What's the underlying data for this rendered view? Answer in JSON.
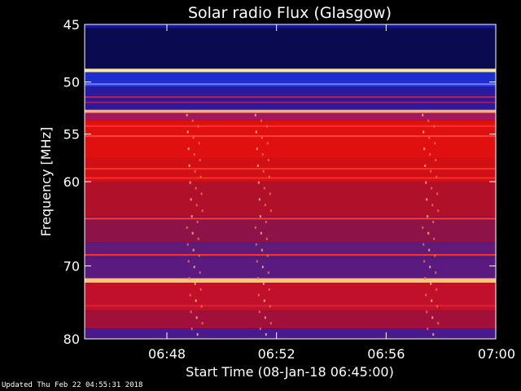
{
  "chart_data": {
    "type": "heatmap",
    "title": "Solar radio Flux (Glasgow)",
    "xlabel": "Start Time (08-Jan-18 06:45:00)",
    "ylabel": "Frequency [MHz]",
    "x_range_minutes": [
      0,
      15
    ],
    "y_range_mhz": [
      45,
      80
    ],
    "y_scale": "log",
    "x_ticks": [
      {
        "minute": 3,
        "label": "06:48"
      },
      {
        "minute": 7,
        "label": "06:52"
      },
      {
        "minute": 11,
        "label": "06:56"
      },
      {
        "minute": 15,
        "label": "07:00"
      }
    ],
    "y_ticks": [
      {
        "mhz": 45,
        "label": "45"
      },
      {
        "mhz": 50,
        "label": "50"
      },
      {
        "mhz": 55,
        "label": "55"
      },
      {
        "mhz": 60,
        "label": "60"
      },
      {
        "mhz": 70,
        "label": "70"
      },
      {
        "mhz": 80,
        "label": "80"
      }
    ],
    "bands": [
      {
        "from": 45.0,
        "to": 45.3,
        "color": "#1414a8"
      },
      {
        "from": 45.3,
        "to": 48.8,
        "color": "#0a0a50"
      },
      {
        "from": 48.8,
        "to": 49.1,
        "color": "#ffe8a0"
      },
      {
        "from": 49.1,
        "to": 50.5,
        "color": "#1e2cd0"
      },
      {
        "from": 50.5,
        "to": 52.6,
        "color": "#2a1aa0"
      },
      {
        "from": 52.6,
        "to": 52.9,
        "color": "#ffb070"
      },
      {
        "from": 52.9,
        "to": 53.6,
        "color": "#a01860"
      },
      {
        "from": 53.6,
        "to": 57.5,
        "color": "#e01010"
      },
      {
        "from": 57.5,
        "to": 60.0,
        "color": "#d01015"
      },
      {
        "from": 60.0,
        "to": 64.0,
        "color": "#b0102a"
      },
      {
        "from": 64.0,
        "to": 67.0,
        "color": "#8c1248"
      },
      {
        "from": 67.0,
        "to": 69.0,
        "color": "#601a78"
      },
      {
        "from": 69.0,
        "to": 71.6,
        "color": "#5a1a80"
      },
      {
        "from": 71.6,
        "to": 72.2,
        "color": "#ffc080"
      },
      {
        "from": 72.2,
        "to": 76.0,
        "color": "#c0102c"
      },
      {
        "from": 76.0,
        "to": 78.5,
        "color": "#a0103a"
      },
      {
        "from": 78.5,
        "to": 80.0,
        "color": "#4a1a8a"
      }
    ],
    "lines": [
      {
        "mhz": 50.2,
        "color": "#8080ff"
      },
      {
        "mhz": 51.4,
        "color": "#c02050"
      },
      {
        "mhz": 51.9,
        "color": "#b01840"
      },
      {
        "mhz": 54.2,
        "color": "#ff3030"
      },
      {
        "mhz": 55.2,
        "color": "#ff4040"
      },
      {
        "mhz": 58.6,
        "color": "#ff3030"
      },
      {
        "mhz": 59.6,
        "color": "#ff2a2a"
      },
      {
        "mhz": 64.2,
        "color": "#ff3a3a"
      },
      {
        "mhz": 68.6,
        "color": "#ff3030"
      },
      {
        "mhz": 75.3,
        "color": "#e02030"
      }
    ],
    "bursts_minutes": [
      4.0,
      6.5,
      12.6
    ],
    "colors": {
      "background": "#000000",
      "axes": "#ffffff"
    }
  },
  "footer": "Updated Thu Feb 22 04:55:31 2018"
}
